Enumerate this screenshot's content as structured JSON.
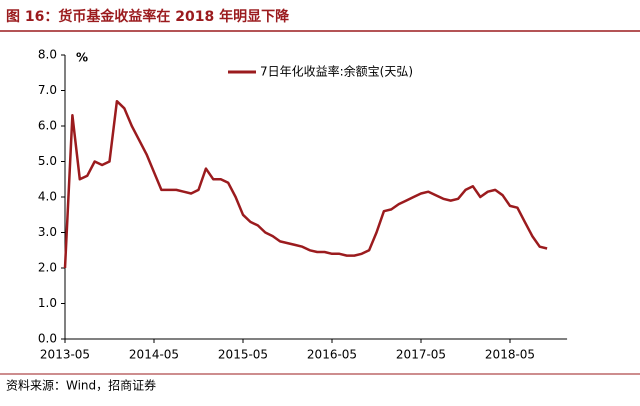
{
  "chart_data": {
    "type": "line",
    "title": "图 16：货币基金收益率在 2018 年明显下降",
    "y_label": "%",
    "source": "资料来源：Wind，招商证券",
    "x": [
      "2013-05",
      "2013-06",
      "2013-07",
      "2013-08",
      "2013-09",
      "2013-10",
      "2013-11",
      "2013-12",
      "2014-01",
      "2014-02",
      "2014-03",
      "2014-04",
      "2014-05",
      "2014-06",
      "2014-07",
      "2014-08",
      "2014-09",
      "2014-10",
      "2014-11",
      "2014-12",
      "2015-01",
      "2015-02",
      "2015-03",
      "2015-04",
      "2015-05",
      "2015-06",
      "2015-07",
      "2015-08",
      "2015-09",
      "2015-10",
      "2015-11",
      "2015-12",
      "2016-01",
      "2016-02",
      "2016-03",
      "2016-04",
      "2016-05",
      "2016-06",
      "2016-07",
      "2016-08",
      "2016-09",
      "2016-10",
      "2016-11",
      "2016-12",
      "2017-01",
      "2017-02",
      "2017-03",
      "2017-04",
      "2017-05",
      "2017-06",
      "2017-07",
      "2017-08",
      "2017-09",
      "2017-10",
      "2017-11",
      "2017-12",
      "2018-01",
      "2018-02",
      "2018-03",
      "2018-04",
      "2018-05",
      "2018-06",
      "2018-07",
      "2018-08",
      "2018-09",
      "2018-10"
    ],
    "series": [
      {
        "name": "7日年化收益率:余额宝(天弘)",
        "color": "#9b1b1e",
        "values": [
          2.0,
          6.3,
          4.5,
          4.6,
          5.0,
          4.9,
          5.0,
          6.7,
          6.5,
          6.0,
          5.6,
          5.2,
          4.7,
          4.2,
          4.2,
          4.2,
          4.15,
          4.1,
          4.2,
          4.8,
          4.5,
          4.5,
          4.4,
          4.0,
          3.5,
          3.3,
          3.2,
          3.0,
          2.9,
          2.75,
          2.7,
          2.65,
          2.6,
          2.5,
          2.45,
          2.45,
          2.4,
          2.4,
          2.35,
          2.35,
          2.4,
          2.5,
          3.0,
          3.6,
          3.65,
          3.8,
          3.9,
          4.0,
          4.1,
          4.15,
          4.05,
          3.95,
          3.9,
          3.95,
          4.2,
          4.3,
          4.0,
          4.15,
          4.2,
          4.05,
          3.75,
          3.7,
          3.3,
          2.9,
          2.6,
          2.55
        ]
      }
    ],
    "ylim": [
      0,
      8
    ],
    "yticks": [
      {
        "value": 0,
        "label": "0.0"
      },
      {
        "value": 1,
        "label": "1.0"
      },
      {
        "value": 2,
        "label": "2.0"
      },
      {
        "value": 3,
        "label": "3.0"
      },
      {
        "value": 4,
        "label": "4.0"
      },
      {
        "value": 5,
        "label": "5.0"
      },
      {
        "value": 6,
        "label": "6.0"
      },
      {
        "value": 7,
        "label": "7.0"
      },
      {
        "value": 8,
        "label": "8.0"
      }
    ],
    "xticks": [
      "2013-05",
      "2014-05",
      "2015-05",
      "2016-05",
      "2017-05",
      "2018-05"
    ],
    "legend": "top"
  }
}
